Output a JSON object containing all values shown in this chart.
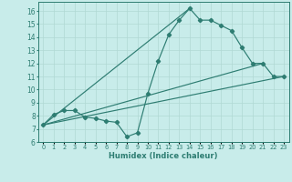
{
  "xlabel": "Humidex (Indice chaleur)",
  "bg_color": "#c8ecea",
  "line_color": "#2e7d72",
  "xlim": [
    -0.5,
    23.5
  ],
  "ylim": [
    6,
    16.7
  ],
  "yticks": [
    6,
    7,
    8,
    9,
    10,
    11,
    12,
    13,
    14,
    15,
    16
  ],
  "xticks": [
    0,
    1,
    2,
    3,
    4,
    5,
    6,
    7,
    8,
    9,
    10,
    11,
    12,
    13,
    14,
    15,
    16,
    17,
    18,
    19,
    20,
    21,
    22,
    23
  ],
  "xtick_labels": [
    "0",
    "1",
    "2",
    "3",
    "4",
    "5",
    "6",
    "7",
    "8",
    "9",
    "10",
    "11",
    "12",
    "13",
    "14",
    "15",
    "16",
    "17",
    "18",
    "19",
    "20",
    "21",
    "22",
    "23"
  ],
  "main_series_x": [
    0,
    1,
    2,
    3,
    4,
    5,
    6,
    7,
    8,
    9,
    10,
    11,
    12,
    13,
    14,
    15,
    16,
    17,
    18,
    19,
    20,
    21,
    22,
    23
  ],
  "main_series_y": [
    7.3,
    8.1,
    8.4,
    8.4,
    7.9,
    7.8,
    7.6,
    7.5,
    6.4,
    6.7,
    9.7,
    12.2,
    14.2,
    15.3,
    16.2,
    15.3,
    15.3,
    14.9,
    14.5,
    13.2,
    12.0,
    12.0,
    11.0,
    11.0
  ],
  "straight_lines": [
    {
      "x": [
        0,
        23
      ],
      "y": [
        7.3,
        11.0
      ]
    },
    {
      "x": [
        0,
        21
      ],
      "y": [
        7.3,
        12.0
      ]
    },
    {
      "x": [
        0,
        14
      ],
      "y": [
        7.3,
        16.2
      ]
    }
  ],
  "grid_color": "#b0d8d4",
  "spine_color": "#2e7d72"
}
